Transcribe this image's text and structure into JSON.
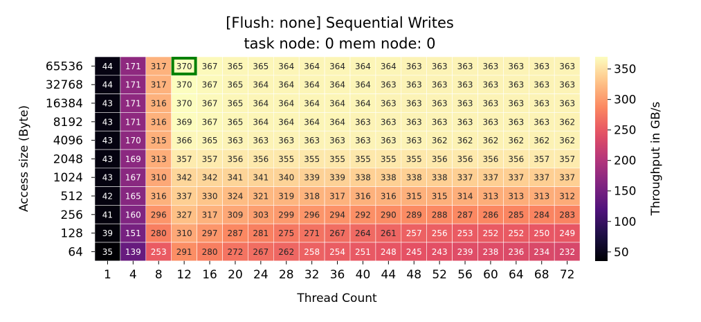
{
  "chart_data": {
    "type": "heatmap",
    "title": "[Flush: none] Sequential Writes",
    "subtitle": "task node: 0 mem node: 0",
    "xlabel": "Thread Count",
    "ylabel": "Access size (Byte)",
    "colorbar_label": "Throughput in GB/s",
    "colormap": "magma",
    "vmin": 35,
    "vmax": 370,
    "colorbar_ticks": [
      50,
      100,
      150,
      200,
      250,
      300,
      350
    ],
    "x_categories": [
      "1",
      "4",
      "8",
      "12",
      "16",
      "20",
      "24",
      "28",
      "32",
      "36",
      "40",
      "44",
      "48",
      "52",
      "56",
      "60",
      "64",
      "68",
      "72"
    ],
    "y_categories": [
      "65536",
      "32768",
      "16384",
      "8192",
      "4096",
      "2048",
      "1024",
      "512",
      "256",
      "128",
      "64"
    ],
    "values": [
      [
        44,
        171,
        317,
        370,
        367,
        365,
        365,
        364,
        364,
        364,
        364,
        364,
        363,
        363,
        363,
        363,
        363,
        363,
        363
      ],
      [
        44,
        171,
        317,
        370,
        367,
        365,
        364,
        364,
        364,
        364,
        364,
        363,
        363,
        363,
        363,
        363,
        363,
        363,
        363
      ],
      [
        43,
        171,
        316,
        370,
        367,
        365,
        364,
        364,
        364,
        364,
        364,
        363,
        363,
        363,
        363,
        363,
        363,
        363,
        363
      ],
      [
        43,
        171,
        316,
        369,
        367,
        365,
        364,
        364,
        364,
        364,
        363,
        363,
        363,
        363,
        363,
        363,
        363,
        363,
        362
      ],
      [
        43,
        170,
        315,
        366,
        365,
        363,
        363,
        363,
        363,
        363,
        363,
        363,
        363,
        362,
        362,
        362,
        362,
        362,
        362
      ],
      [
        43,
        169,
        313,
        357,
        357,
        356,
        356,
        355,
        355,
        355,
        355,
        355,
        355,
        356,
        356,
        356,
        356,
        357,
        357
      ],
      [
        43,
        167,
        310,
        342,
        342,
        341,
        341,
        340,
        339,
        339,
        338,
        338,
        338,
        338,
        337,
        337,
        337,
        337,
        337
      ],
      [
        42,
        165,
        316,
        337,
        330,
        324,
        321,
        319,
        318,
        317,
        316,
        316,
        315,
        315,
        314,
        313,
        313,
        313,
        312
      ],
      [
        41,
        160,
        296,
        327,
        317,
        309,
        303,
        299,
        296,
        294,
        292,
        290,
        289,
        288,
        287,
        286,
        285,
        284,
        283
      ],
      [
        39,
        151,
        280,
        310,
        297,
        287,
        281,
        275,
        271,
        267,
        264,
        261,
        257,
        256,
        253,
        252,
        252,
        250,
        249
      ],
      [
        35,
        139,
        253,
        291,
        280,
        272,
        267,
        262,
        258,
        254,
        251,
        248,
        245,
        243,
        239,
        238,
        236,
        234,
        232
      ]
    ],
    "highlight": {
      "row": 0,
      "col": 3,
      "color": "#008000"
    },
    "grid": false,
    "legend": "colorbar-right"
  }
}
